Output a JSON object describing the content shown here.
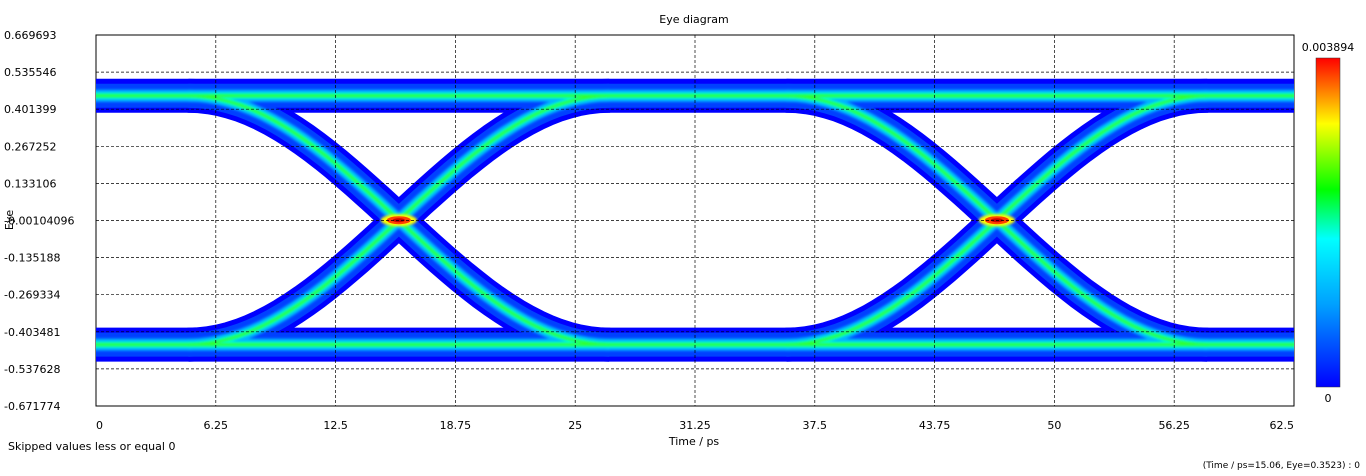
{
  "chart_data": {
    "type": "heatmap",
    "title": "Eye diagram",
    "xlabel": "Time / ps",
    "ylabel": "Eye",
    "xlim": [
      0,
      62.5
    ],
    "ylim": [
      -0.671774,
      0.669693
    ],
    "x_ticks": [
      "0",
      "6.25",
      "12.5",
      "18.75",
      "25",
      "31.25",
      "37.5",
      "43.75",
      "50",
      "56.25",
      "62.5"
    ],
    "x_tick_values": [
      0,
      6.25,
      12.5,
      18.75,
      25,
      31.25,
      37.5,
      43.75,
      50,
      56.25,
      62.5
    ],
    "y_ticks": [
      "0.669693",
      "0.535546",
      "0.401399",
      "0.267252",
      "0.133106",
      "-0.00104096",
      "-0.135188",
      "-0.269334",
      "-0.403481",
      "-0.537628",
      "-0.671774"
    ],
    "y_tick_values": [
      0.669693,
      0.535546,
      0.401399,
      0.267252,
      0.133106,
      -0.00104096,
      -0.135188,
      -0.269334,
      -0.403481,
      -0.537628,
      -0.671774
    ],
    "grid": true,
    "unit_interval_ps": 31.25,
    "crossing_times_ps": [
      15.8,
      47.0
    ],
    "rail_levels": [
      0.45,
      -0.45
    ],
    "colorbar": {
      "max_label": "0.003894",
      "min_label": "0",
      "min": 0,
      "max": 0.003894,
      "colormap": [
        "#0000ff",
        "#00ffff",
        "#00ff00",
        "#ffff00",
        "#ff0000"
      ]
    }
  },
  "footer": {
    "note": "Skipped values less or equal 0",
    "cursor_readout": "(Time / ps=15.06, Eye=0.3523) : 0"
  }
}
